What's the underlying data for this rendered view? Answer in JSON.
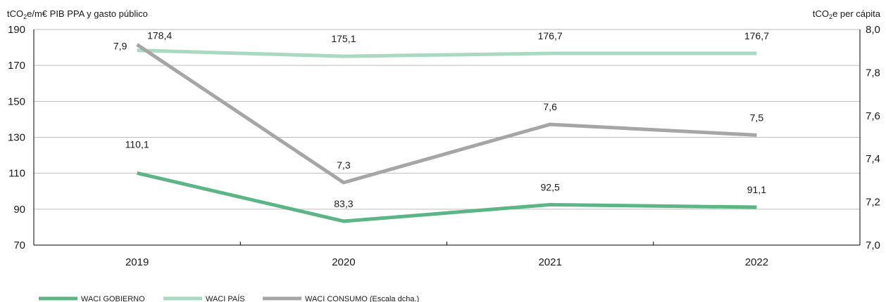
{
  "chart_data": {
    "type": "line",
    "categories": [
      "2019",
      "2020",
      "2021",
      "2022"
    ],
    "y_left": {
      "label": "tCO2e/m€ PIB PPA y gasto público",
      "ticks": [
        "70",
        "90",
        "110",
        "130",
        "150",
        "170",
        "190"
      ],
      "range": [
        70,
        190
      ]
    },
    "y_right": {
      "label": "tCO2e per cápita",
      "ticks": [
        "7,0",
        "7,2",
        "7,4",
        "7,6",
        "7,8",
        "8,0"
      ],
      "range": [
        7.0,
        8.0
      ]
    },
    "grid": "horizontal",
    "legend_position": "bottom-left",
    "series": [
      {
        "name": "WACI GOBIERNO",
        "axis": "left",
        "color": "#5cb585",
        "values": [
          110.1,
          83.3,
          92.5,
          91.1
        ],
        "labels": [
          "110,1",
          "83,3",
          "92,5",
          "91,1"
        ]
      },
      {
        "name": "WACI PAÍS",
        "axis": "left",
        "color": "#a9d9c0",
        "values": [
          178.4,
          175.1,
          176.7,
          176.7
        ],
        "labels": [
          "178,4",
          "175,1",
          "176,7",
          "176,7"
        ]
      },
      {
        "name": "WACI CONSUMO (Escala dcha.)",
        "axis": "right",
        "color": "#a6a6a6",
        "values": [
          7.93,
          7.29,
          7.56,
          7.51
        ],
        "labels": [
          "7,9",
          "7,3",
          "7,6",
          "7,5"
        ]
      }
    ]
  }
}
